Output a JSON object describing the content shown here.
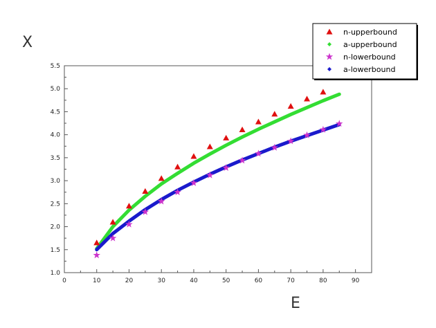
{
  "chart_data": {
    "type": "scatter",
    "xlabel": "E",
    "ylabel": "X",
    "xlim": [
      0,
      95
    ],
    "ylim": [
      1.0,
      5.5
    ],
    "x_ticks": [
      "0",
      "10",
      "20",
      "30",
      "40",
      "50",
      "60",
      "70",
      "80",
      "90"
    ],
    "y_ticks": [
      "1.0",
      "1.5",
      "2.0",
      "2.5",
      "3.0",
      "3.5",
      "4.0",
      "4.5",
      "5.0",
      "5.5"
    ],
    "grid": false,
    "legend_position": "top-right",
    "series": [
      {
        "name": "n-upperbound",
        "kind": "markers",
        "marker": "triangle",
        "color": "#e01010",
        "x": [
          10,
          15,
          20,
          25,
          30,
          35,
          40,
          45,
          50,
          55,
          60,
          65,
          70,
          75,
          80
        ],
        "y": [
          1.65,
          2.1,
          2.45,
          2.77,
          3.05,
          3.3,
          3.53,
          3.74,
          3.93,
          4.11,
          4.28,
          4.45,
          4.62,
          4.78,
          4.93
        ]
      },
      {
        "name": "a-upperbound",
        "kind": "line",
        "color": "#33dd33",
        "x": [
          10,
          15,
          20,
          25,
          30,
          35,
          40,
          45,
          50,
          55,
          60,
          65,
          70,
          75,
          80,
          85
        ],
        "y": [
          1.52,
          2.0,
          2.36,
          2.66,
          2.93,
          3.16,
          3.38,
          3.58,
          3.77,
          3.95,
          4.12,
          4.28,
          4.44,
          4.59,
          4.74,
          4.88
        ]
      },
      {
        "name": "n-lowerbound",
        "kind": "markers",
        "marker": "star",
        "color": "#cc33cc",
        "x": [
          10,
          15,
          20,
          25,
          30,
          35,
          40,
          45,
          50,
          55,
          60,
          65,
          70,
          75,
          80,
          85
        ],
        "y": [
          1.38,
          1.75,
          2.05,
          2.32,
          2.55,
          2.75,
          2.95,
          3.12,
          3.28,
          3.44,
          3.59,
          3.72,
          3.86,
          3.99,
          4.11,
          4.24
        ]
      },
      {
        "name": "a-lowerbound",
        "kind": "line",
        "color": "#1a1acc",
        "x": [
          10,
          15,
          20,
          25,
          30,
          35,
          40,
          45,
          50,
          55,
          60,
          65,
          70,
          75,
          80,
          85
        ],
        "y": [
          1.5,
          1.85,
          2.12,
          2.37,
          2.59,
          2.79,
          2.97,
          3.14,
          3.3,
          3.45,
          3.59,
          3.73,
          3.86,
          3.98,
          4.1,
          4.22
        ]
      }
    ]
  }
}
